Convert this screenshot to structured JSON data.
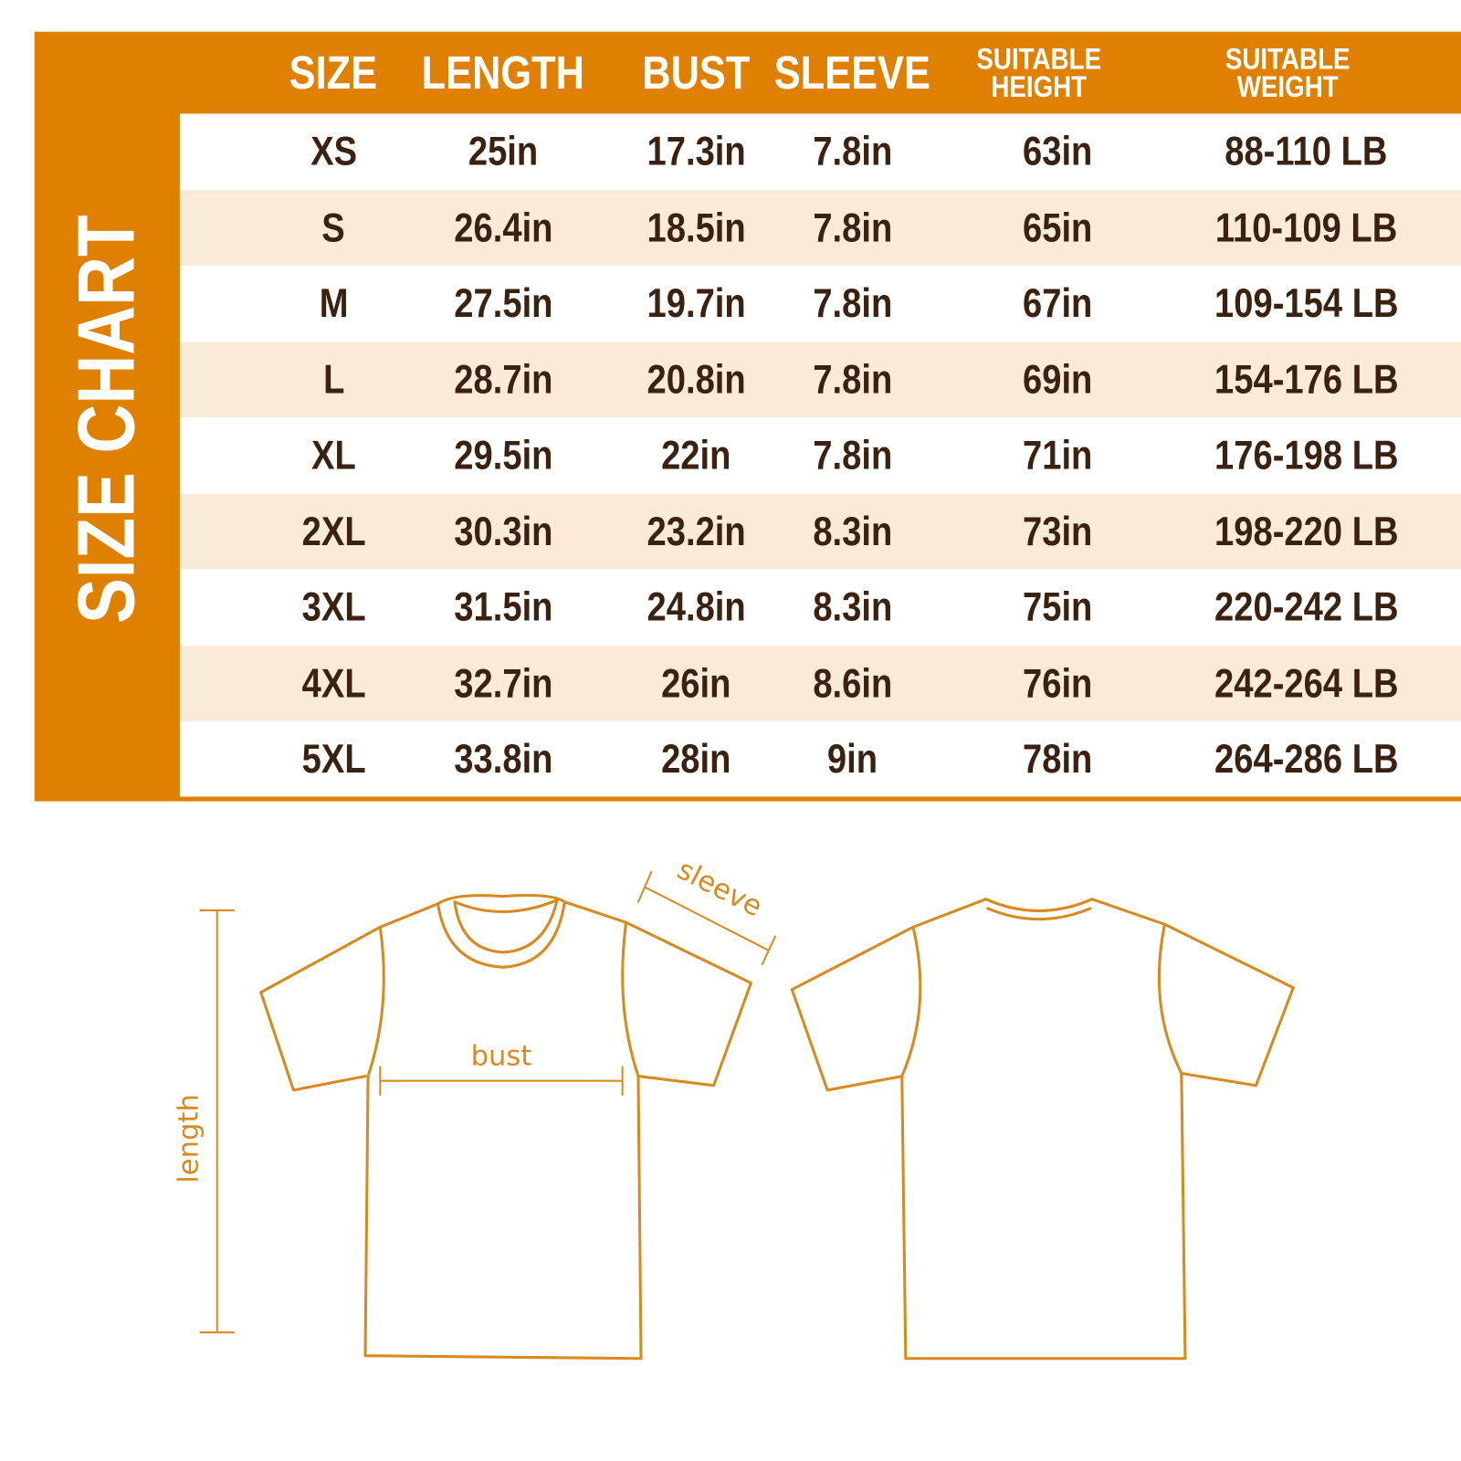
{
  "title": "SIZE CHART",
  "colors": {
    "accent": "#E08000",
    "row_alt": "#FAEAD8",
    "text": "#3B2210",
    "drawing": "#D98A1E"
  },
  "headers": [
    "SIZE",
    "LENGTH",
    "BUST",
    "SLEEVE",
    "SUITABLE HEIGHT",
    "SUITABLE WEIGHT"
  ],
  "rows": [
    [
      "XS",
      "25in",
      "17.3in",
      "7.8in",
      "63in",
      "88-110 LB"
    ],
    [
      "S",
      "26.4in",
      "18.5in",
      "7.8in",
      "65in",
      "110-109 LB"
    ],
    [
      "M",
      "27.5in",
      "19.7in",
      "7.8in",
      "67in",
      "109-154 LB"
    ],
    [
      "L",
      "28.7in",
      "20.8in",
      "7.8in",
      "69in",
      "154-176 LB"
    ],
    [
      "XL",
      "29.5in",
      "22in",
      "7.8in",
      "71in",
      "176-198 LB"
    ],
    [
      "2XL",
      "30.3in",
      "23.2in",
      "8.3in",
      "73in",
      "198-220 LB"
    ],
    [
      "3XL",
      "31.5in",
      "24.8in",
      "8.3in",
      "75in",
      "220-242 LB"
    ],
    [
      "4XL",
      "32.7in",
      "26in",
      "8.6in",
      "76in",
      "242-264 LB"
    ],
    [
      "5XL",
      "33.8in",
      "28in",
      "9in",
      "78in",
      "264-286 LB"
    ]
  ],
  "diagram": {
    "length_label": "length",
    "bust_label": "bust",
    "sleeve_label": "sleeve"
  }
}
